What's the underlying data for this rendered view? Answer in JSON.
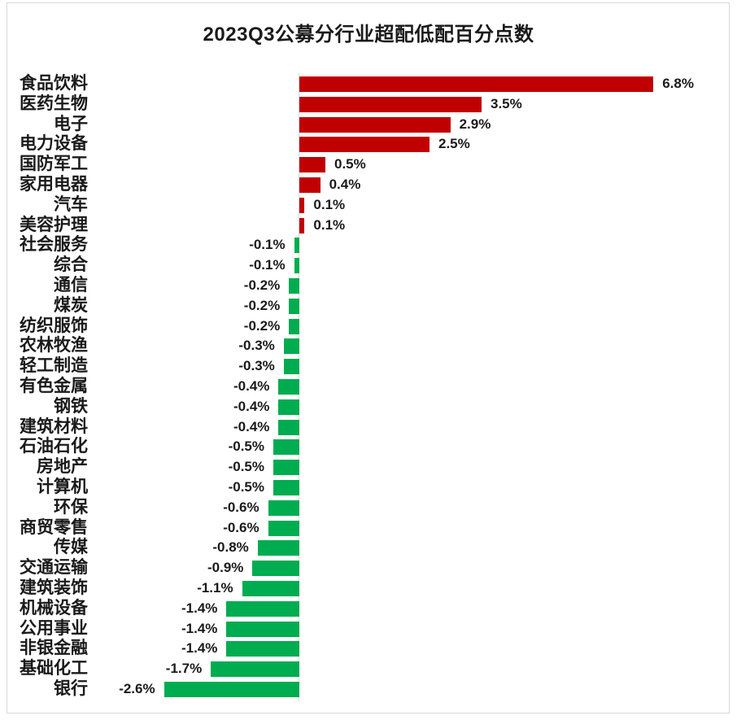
{
  "title": "2023Q3公募分行业超配低配百分点数",
  "chart_data": {
    "type": "bar",
    "orientation": "horizontal",
    "title": "2023Q3公募分行业超配低配百分点数",
    "xlabel": "",
    "ylabel": "",
    "unit": "%",
    "xlim": [
      -3,
      7
    ],
    "grid": false,
    "legend": "none",
    "positive_color": "#C00000",
    "negative_color": "#00AC50",
    "axis_color": "#D9D9D9",
    "border_color": "#D9D9D9",
    "text_color": "#1A1A1A",
    "categories": [
      "食品饮料",
      "医药生物",
      "电子",
      "电力设备",
      "国防军工",
      "家用电器",
      "汽车",
      "美容护理",
      "社会服务",
      "综合",
      "通信",
      "煤炭",
      "纺织服饰",
      "农林牧渔",
      "轻工制造",
      "有色金属",
      "钢铁",
      "建筑材料",
      "石油石化",
      "房地产",
      "计算机",
      "环保",
      "商贸零售",
      "传媒",
      "交通运输",
      "建筑装饰",
      "机械设备",
      "公用事业",
      "非银金融",
      "基础化工",
      "银行"
    ],
    "values": [
      6.8,
      3.5,
      2.9,
      2.5,
      0.5,
      0.4,
      0.1,
      0.1,
      -0.1,
      -0.1,
      -0.2,
      -0.2,
      -0.2,
      -0.3,
      -0.3,
      -0.4,
      -0.4,
      -0.4,
      -0.5,
      -0.5,
      -0.5,
      -0.6,
      -0.6,
      -0.8,
      -0.9,
      -1.1,
      -1.4,
      -1.4,
      -1.4,
      -1.7,
      -2.6
    ],
    "labels": [
      "6.8%",
      "3.5%",
      "2.9%",
      "2.5%",
      "0.5%",
      "0.4%",
      "0.1%",
      "0.1%",
      "-0.1%",
      "-0.1%",
      "-0.2%",
      "-0.2%",
      "-0.2%",
      "-0.3%",
      "-0.3%",
      "-0.4%",
      "-0.4%",
      "-0.4%",
      "-0.5%",
      "-0.5%",
      "-0.5%",
      "-0.6%",
      "-0.6%",
      "-0.8%",
      "-0.9%",
      "-1.1%",
      "-1.4%",
      "-1.4%",
      "-1.4%",
      "-1.7%",
      "-2.6%"
    ]
  }
}
